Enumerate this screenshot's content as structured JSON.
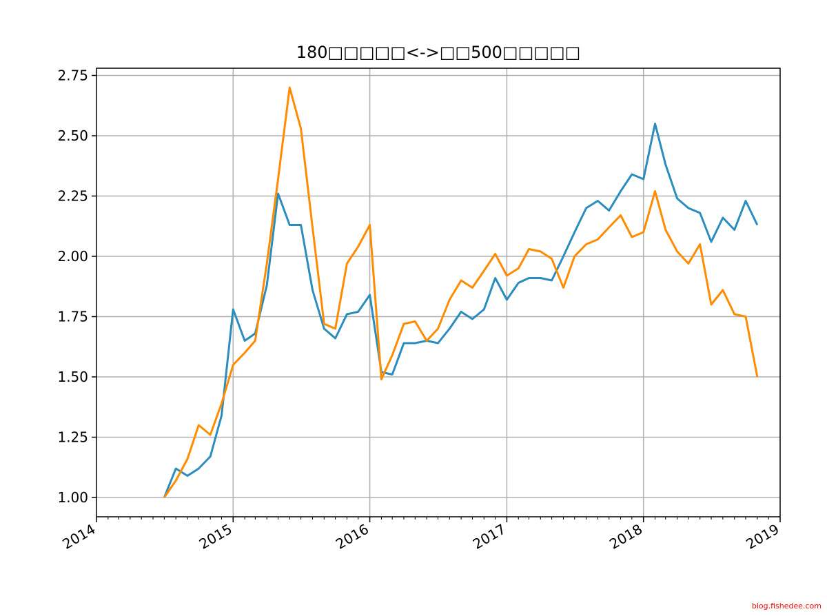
{
  "chart_data": {
    "type": "line",
    "title": "180□□□□□<->□□500□□□□□",
    "xlabel": "",
    "ylabel": "",
    "x_axis": {
      "type": "date",
      "range": [
        "2014-01-01",
        "2019-01-01"
      ],
      "tick_labels": [
        "2014",
        "2015",
        "2016",
        "2017",
        "2018",
        "2019"
      ]
    },
    "y_axis": {
      "range": [
        0.92,
        2.78
      ],
      "tick_values": [
        1.0,
        1.25,
        1.5,
        1.75,
        2.0,
        2.25,
        2.5,
        2.75
      ],
      "tick_labels": [
        "1.00",
        "1.25",
        "1.50",
        "1.75",
        "2.00",
        "2.25",
        "2.50",
        "2.75"
      ]
    },
    "grid": true,
    "legend": "none",
    "x": [
      "2014-07",
      "2014-08",
      "2014-09",
      "2014-10",
      "2014-11",
      "2014-12",
      "2015-01",
      "2015-02",
      "2015-03",
      "2015-04",
      "2015-05",
      "2015-06",
      "2015-07",
      "2015-08",
      "2015-09",
      "2015-10",
      "2015-11",
      "2015-12",
      "2016-01",
      "2016-02",
      "2016-03",
      "2016-04",
      "2016-05",
      "2016-06",
      "2016-07",
      "2016-08",
      "2016-09",
      "2016-10",
      "2016-11",
      "2016-12",
      "2017-01",
      "2017-02",
      "2017-03",
      "2017-04",
      "2017-05",
      "2017-06",
      "2017-07",
      "2017-08",
      "2017-09",
      "2017-10",
      "2017-11",
      "2017-12",
      "2018-01",
      "2018-02",
      "2018-03",
      "2018-04",
      "2018-05",
      "2018-06",
      "2018-07",
      "2018-08",
      "2018-09",
      "2018-10",
      "2018-11"
    ],
    "series": [
      {
        "color": "#2b8cbe",
        "values": [
          1.0,
          1.12,
          1.09,
          1.12,
          1.17,
          1.34,
          1.78,
          1.65,
          1.68,
          1.88,
          2.26,
          2.13,
          2.13,
          1.86,
          1.7,
          1.66,
          1.76,
          1.77,
          1.84,
          1.52,
          1.51,
          1.64,
          1.64,
          1.65,
          1.64,
          1.7,
          1.77,
          1.74,
          1.78,
          1.91,
          1.82,
          1.89,
          1.91,
          1.91,
          1.9,
          2.0,
          2.1,
          2.2,
          2.23,
          2.19,
          2.27,
          2.34,
          2.32,
          2.55,
          2.38,
          2.24,
          2.2,
          2.18,
          2.06,
          2.16,
          2.11,
          2.23,
          2.13
        ]
      },
      {
        "color": "#ff8c00",
        "values": [
          1.0,
          1.07,
          1.16,
          1.3,
          1.26,
          1.39,
          1.55,
          1.6,
          1.65,
          1.97,
          2.32,
          2.7,
          2.53,
          2.12,
          1.72,
          1.7,
          1.97,
          2.04,
          2.13,
          1.49,
          1.59,
          1.72,
          1.73,
          1.65,
          1.7,
          1.82,
          1.9,
          1.87,
          1.94,
          2.01,
          1.92,
          1.95,
          2.03,
          2.02,
          1.99,
          1.87,
          2.0,
          2.05,
          2.07,
          2.12,
          2.17,
          2.08,
          2.1,
          2.27,
          2.11,
          2.02,
          1.97,
          2.05,
          1.8,
          1.86,
          1.76,
          1.75,
          1.5
        ]
      }
    ]
  },
  "watermark": "blog.fishedee.com"
}
